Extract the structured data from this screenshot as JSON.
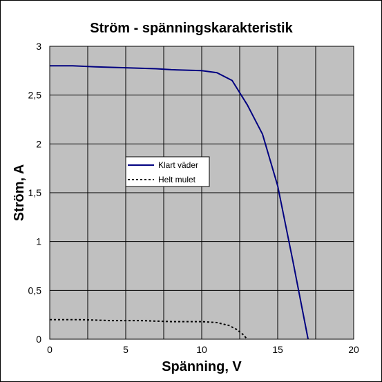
{
  "chart_data": {
    "type": "line",
    "title": "Ström - spänningskarakteristik",
    "xlabel": "Spänning, V",
    "ylabel": "Ström, A",
    "xlim": [
      0,
      20
    ],
    "ylim": [
      0,
      3
    ],
    "x_ticks": [
      "0",
      "5",
      "10",
      "15",
      "20"
    ],
    "y_ticks": [
      "0",
      "0,5",
      "1",
      "1,5",
      "2",
      "2,5",
      "3"
    ],
    "grid": true,
    "legend_position": "center-left",
    "plot_background": "#c0c0c0",
    "series": [
      {
        "name": "Klart väder",
        "style": "solid",
        "color": "#000080",
        "x": [
          0,
          1.5,
          3,
          5,
          7,
          8,
          10,
          11,
          12,
          13,
          14,
          15,
          16,
          17
        ],
        "y": [
          2.8,
          2.8,
          2.79,
          2.78,
          2.77,
          2.76,
          2.75,
          2.73,
          2.65,
          2.4,
          2.1,
          1.57,
          0.8,
          0
        ]
      },
      {
        "name": "Helt mulet",
        "style": "dotted",
        "color": "#000000",
        "x": [
          0,
          2,
          4,
          6,
          8,
          10,
          11,
          11.8,
          12.3,
          12.7,
          13
        ],
        "y": [
          0.2,
          0.2,
          0.19,
          0.19,
          0.18,
          0.18,
          0.17,
          0.14,
          0.1,
          0.05,
          0
        ]
      }
    ]
  }
}
